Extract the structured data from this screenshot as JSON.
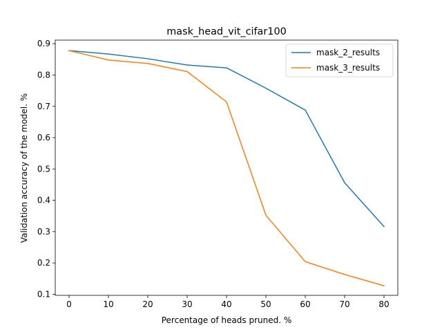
{
  "chart_data": {
    "type": "line",
    "title": "mask_head_vit_cifar100",
    "xlabel": "Percentage of heads pruned. %",
    "ylabel": "Validation accuracy of the model. %",
    "x": [
      0,
      10,
      20,
      30,
      40,
      50,
      60,
      70,
      80
    ],
    "xlim": [
      -3.5,
      83.5
    ],
    "ylim": [
      0.0965,
      0.9115
    ],
    "xticks": [
      0,
      10,
      20,
      30,
      40,
      50,
      60,
      70,
      80
    ],
    "yticks": [
      0.1,
      0.2,
      0.3,
      0.4,
      0.5,
      0.6,
      0.7,
      0.8,
      0.9
    ],
    "xtick_labels": [
      "0",
      "10",
      "20",
      "30",
      "40",
      "50",
      "60",
      "70",
      "80"
    ],
    "ytick_labels": [
      "0.1",
      "0.2",
      "0.3",
      "0.4",
      "0.5",
      "0.6",
      "0.7",
      "0.8",
      "0.9"
    ],
    "grid": false,
    "legend_position": "upper right",
    "series": [
      {
        "name": "mask_2_results",
        "color": "#1f77b4",
        "values": [
          0.878,
          0.867,
          0.852,
          0.832,
          0.823,
          0.758,
          0.688,
          0.456,
          0.316
        ]
      },
      {
        "name": "mask_3_results",
        "color": "#ff7f0e",
        "values": [
          0.878,
          0.848,
          0.837,
          0.811,
          0.714,
          0.352,
          0.204,
          0.163,
          0.127
        ]
      }
    ]
  }
}
